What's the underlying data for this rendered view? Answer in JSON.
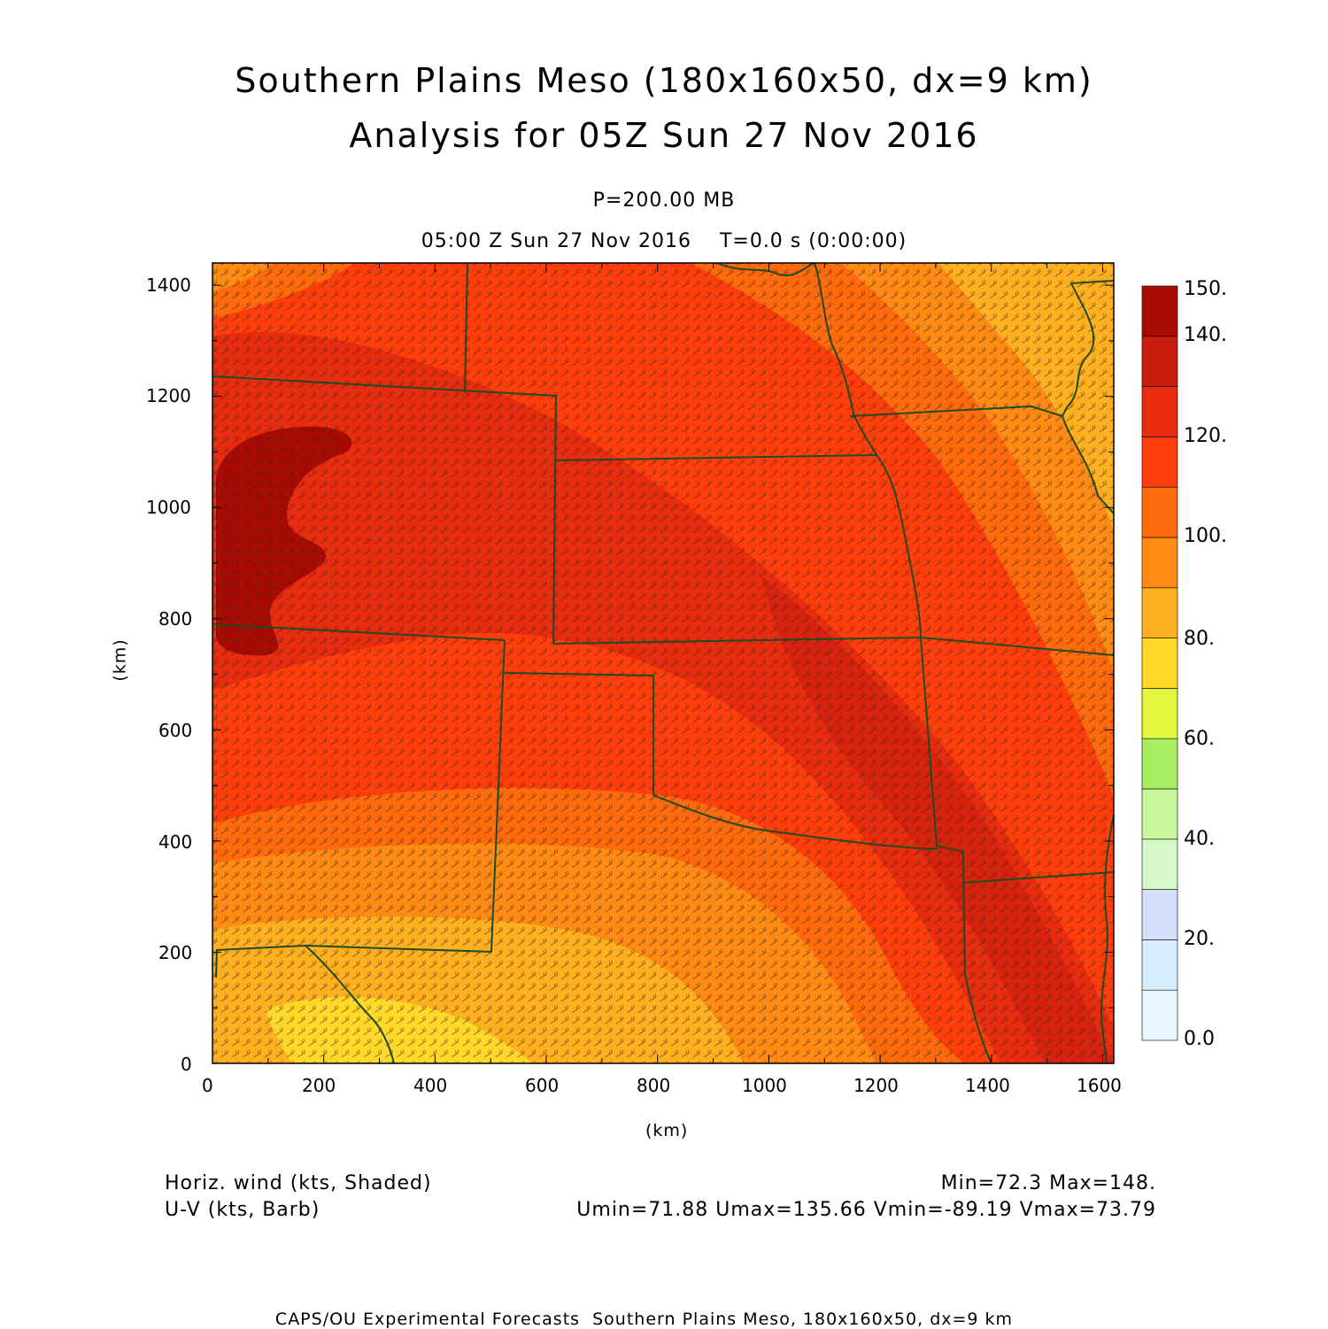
{
  "title_line1": "Southern Plains Meso (180x160x50, dx=9 km)",
  "title_line2": "Analysis for 05Z Sun 27 Nov 2016",
  "level": "P=200.00 MB",
  "time_line": "05:00 Z Sun 27 Nov 2016    T=0.0 s (0:00:00)",
  "x_axis": {
    "label": "(km)",
    "ticks": [
      "0",
      "200",
      "400",
      "600",
      "800",
      "1000",
      "1200",
      "1400",
      "1600"
    ],
    "range": [
      0,
      1620
    ]
  },
  "y_axis": {
    "label": "(km)",
    "ticks": [
      "0",
      "200",
      "400",
      "600",
      "800",
      "1000",
      "1200",
      "1400"
    ],
    "range": [
      0,
      1440
    ]
  },
  "colorbar": {
    "labels": [
      "0.0",
      "20.",
      "40.",
      "60.",
      "80.",
      "100.",
      "120.",
      "140.",
      "150."
    ],
    "colors": [
      "#e8f6ff",
      "#d6ecff",
      "#d4e0fa",
      "#d4f8c8",
      "#c8f89c",
      "#a8ec62",
      "#e2f83c",
      "#ffd82a",
      "#ffb020",
      "#ff8a14",
      "#ff6a0c",
      "#ff3e0c",
      "#e82c10",
      "#c81e0c",
      "#a80a04"
    ]
  },
  "legend_left": [
    "Horiz. wind (kts, Shaded)",
    "U-V (kts, Barb)"
  ],
  "legend_right": [
    "Min=72.3 Max=148.",
    "Umin=71.88 Umax=135.66 Vmin=-89.19 Vmax=73.79"
  ],
  "footer": "CAPS/OU Experimental Forecasts  Southern Plains Meso, 180x160x50, dx=9 km",
  "field": {
    "min": 72.3,
    "max": 148,
    "units": "kts"
  }
}
